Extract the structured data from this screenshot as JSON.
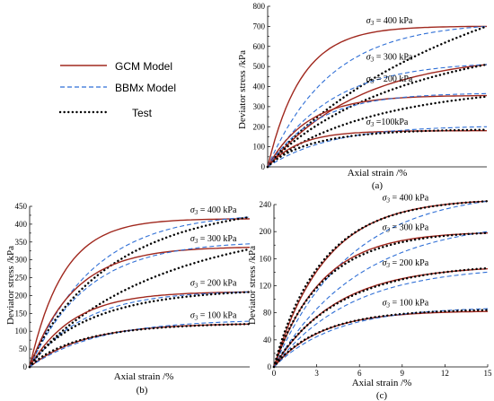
{
  "legend": {
    "items": [
      {
        "label": "GCM Model",
        "style": "solid",
        "color": "#a0281e"
      },
      {
        "label": "BBMx Model",
        "style": "dashed",
        "color": "#2f6fd6"
      },
      {
        "label": "Test",
        "style": "dotted",
        "color": "#000000"
      }
    ]
  },
  "colors": {
    "gcm": "#a0281e",
    "bbmx": "#2f6fd6",
    "test": "#000000"
  },
  "chart_data": [
    {
      "id": "a",
      "type": "line",
      "panel_label": "(a)",
      "xlabel": "Axial strain /%",
      "ylabel": "Deviator stress /kPa",
      "ylim": [
        0,
        800
      ],
      "yticks": [
        "0",
        "100",
        "200",
        "300",
        "400",
        "500",
        "600",
        "700",
        "800"
      ],
      "xticks": [],
      "xmax": 1,
      "annotations": [
        {
          "sigma": "σ",
          "sub": "3",
          "text": " = 400 kPa",
          "x": 0.45,
          "y": 715
        },
        {
          "sigma": "σ",
          "sub": "3",
          "text": " = 300 kPa",
          "x": 0.45,
          "y": 535
        },
        {
          "sigma": "σ",
          "sub": "3",
          "text": " = 200 kPa",
          "x": 0.45,
          "y": 425
        },
        {
          "sigma": "σ",
          "sub": "3",
          "text": " =100kPa",
          "x": 0.45,
          "y": 210
        }
      ],
      "curves": [
        {
          "model": "gcm",
          "final": 700,
          "k": 6.5,
          "p": 1
        },
        {
          "model": "bbmx",
          "final": 700,
          "k": 3.5,
          "p": 1
        },
        {
          "model": "test",
          "final": 700,
          "k": 0.9,
          "p": 0.9
        },
        {
          "model": "gcm",
          "final": 510,
          "k": 2.4,
          "p": 1
        },
        {
          "model": "bbmx",
          "final": 510,
          "k": 3.5,
          "p": 1
        },
        {
          "model": "test",
          "final": 510,
          "k": 1.4,
          "p": 0.9
        },
        {
          "model": "gcm",
          "final": 355,
          "k": 5.5,
          "p": 1
        },
        {
          "model": "bbmx",
          "final": 365,
          "k": 4.5,
          "p": 1
        },
        {
          "model": "test",
          "final": 350,
          "k": 1.8,
          "p": 0.9
        },
        {
          "model": "gcm",
          "final": 180,
          "k": 7,
          "p": 1
        },
        {
          "model": "bbmx",
          "final": 200,
          "k": 3.5,
          "p": 1
        },
        {
          "model": "test",
          "final": 185,
          "k": 4,
          "p": 0.9
        }
      ]
    },
    {
      "id": "b",
      "type": "line",
      "panel_label": "(b)",
      "xlabel": "Axial strain /%",
      "ylabel": "Deviator stress /kPa",
      "ylim": [
        0,
        450
      ],
      "yticks": [
        "0",
        "50",
        "100",
        "150",
        "200",
        "250",
        "300",
        "350",
        "400",
        "450"
      ],
      "xticks": [],
      "xmax": 1,
      "annotations": [
        {
          "sigma": "σ",
          "sub": "3",
          "text": " = 400 kPa",
          "x": 0.73,
          "y": 432
        },
        {
          "sigma": "σ",
          "sub": "3",
          "text": " = 300 kPa",
          "x": 0.73,
          "y": 352
        },
        {
          "sigma": "σ",
          "sub": "3",
          "text": " = 200 kPa",
          "x": 0.73,
          "y": 228
        },
        {
          "sigma": "σ",
          "sub": "3",
          "text": " = 100 kPa",
          "x": 0.73,
          "y": 137
        }
      ],
      "curves": [
        {
          "model": "gcm",
          "final": 415,
          "k": 6.5,
          "p": 1
        },
        {
          "model": "bbmx",
          "final": 420,
          "k": 3.5,
          "p": 1
        },
        {
          "model": "test",
          "final": 420,
          "k": 2.3,
          "p": 0.9
        },
        {
          "model": "gcm",
          "final": 335,
          "k": 5,
          "p": 1
        },
        {
          "model": "bbmx",
          "final": 345,
          "k": 3.8,
          "p": 1
        },
        {
          "model": "test",
          "final": 330,
          "k": 1.5,
          "p": 0.9
        },
        {
          "model": "gcm",
          "final": 210,
          "k": 5,
          "p": 1
        },
        {
          "model": "bbmx",
          "final": 210,
          "k": 4,
          "p": 1
        },
        {
          "model": "test",
          "final": 210,
          "k": 3,
          "p": 0.9
        },
        {
          "model": "gcm",
          "final": 120,
          "k": 4,
          "p": 1
        },
        {
          "model": "bbmx",
          "final": 128,
          "k": 3.2,
          "p": 1
        },
        {
          "model": "test",
          "final": 120,
          "k": 3.5,
          "p": 0.9
        }
      ]
    },
    {
      "id": "c",
      "type": "line",
      "panel_label": "(c)",
      "xlabel": "Axial strain /%",
      "ylabel": "Deviator stress /kPa",
      "ylim": [
        0,
        240
      ],
      "yticks": [
        "0",
        "40",
        "80",
        "120",
        "160",
        "200",
        "240"
      ],
      "xticks": [
        "0",
        "3",
        "6",
        "9",
        "12",
        "15"
      ],
      "xmax": 15,
      "annotations": [
        {
          "sigma": "σ",
          "sub": "3",
          "text": " = 400 kPa",
          "x": 7.6,
          "y": 246
        },
        {
          "sigma": "σ",
          "sub": "3",
          "text": " = 300 kPa",
          "x": 7.6,
          "y": 202
        },
        {
          "sigma": "σ",
          "sub": "3",
          "text": " = 200 kPa",
          "x": 7.6,
          "y": 150
        },
        {
          "sigma": "σ",
          "sub": "3",
          "text": " = 100 kPa",
          "x": 7.6,
          "y": 91
        }
      ],
      "curves": [
        {
          "model": "gcm",
          "final": 245,
          "k": 4.2,
          "p": 1
        },
        {
          "model": "bbmx",
          "final": 245,
          "k": 2.8,
          "p": 1
        },
        {
          "model": "test",
          "final": 245,
          "k": 4.0,
          "p": 0.95
        },
        {
          "model": "gcm",
          "final": 198,
          "k": 4.5,
          "p": 1
        },
        {
          "model": "bbmx",
          "final": 200,
          "k": 2.5,
          "p": 1
        },
        {
          "model": "test",
          "final": 198,
          "k": 4.0,
          "p": 0.95
        },
        {
          "model": "gcm",
          "final": 145,
          "k": 3.4,
          "p": 1
        },
        {
          "model": "bbmx",
          "final": 140,
          "k": 2.8,
          "p": 1
        },
        {
          "model": "test",
          "final": 146,
          "k": 3.0,
          "p": 0.95
        },
        {
          "model": "gcm",
          "final": 82,
          "k": 4.5,
          "p": 1
        },
        {
          "model": "bbmx",
          "final": 86,
          "k": 3.5,
          "p": 1
        },
        {
          "model": "test",
          "final": 84,
          "k": 4.0,
          "p": 0.95
        }
      ]
    }
  ]
}
